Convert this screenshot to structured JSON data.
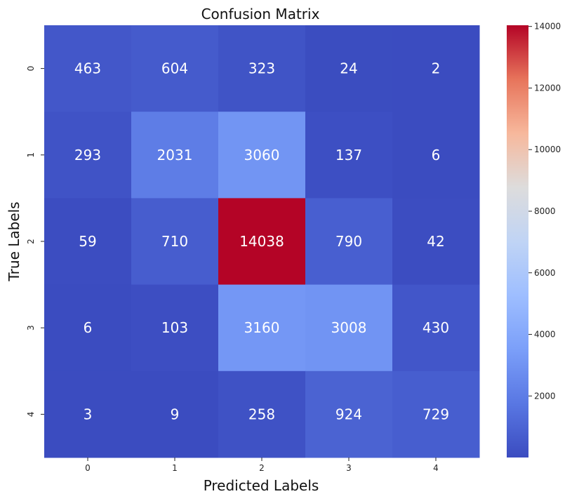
{
  "chart_data": {
    "type": "heatmap",
    "title": "Confusion Matrix",
    "xlabel": "Predicted Labels",
    "ylabel": "True Labels",
    "x_categories": [
      "0",
      "1",
      "2",
      "3",
      "4"
    ],
    "y_categories": [
      "0",
      "1",
      "2",
      "3",
      "4"
    ],
    "values": [
      [
        463,
        604,
        323,
        24,
        2
      ],
      [
        293,
        2031,
        3060,
        137,
        6
      ],
      [
        59,
        710,
        14038,
        790,
        42
      ],
      [
        6,
        103,
        3160,
        3008,
        430
      ],
      [
        3,
        9,
        258,
        924,
        729
      ]
    ],
    "colormap": "coolwarm",
    "colorbar": {
      "vmin": 2,
      "vmax": 14038,
      "ticks": [
        2000,
        4000,
        6000,
        8000,
        10000,
        12000,
        14000
      ]
    },
    "grid": false
  }
}
